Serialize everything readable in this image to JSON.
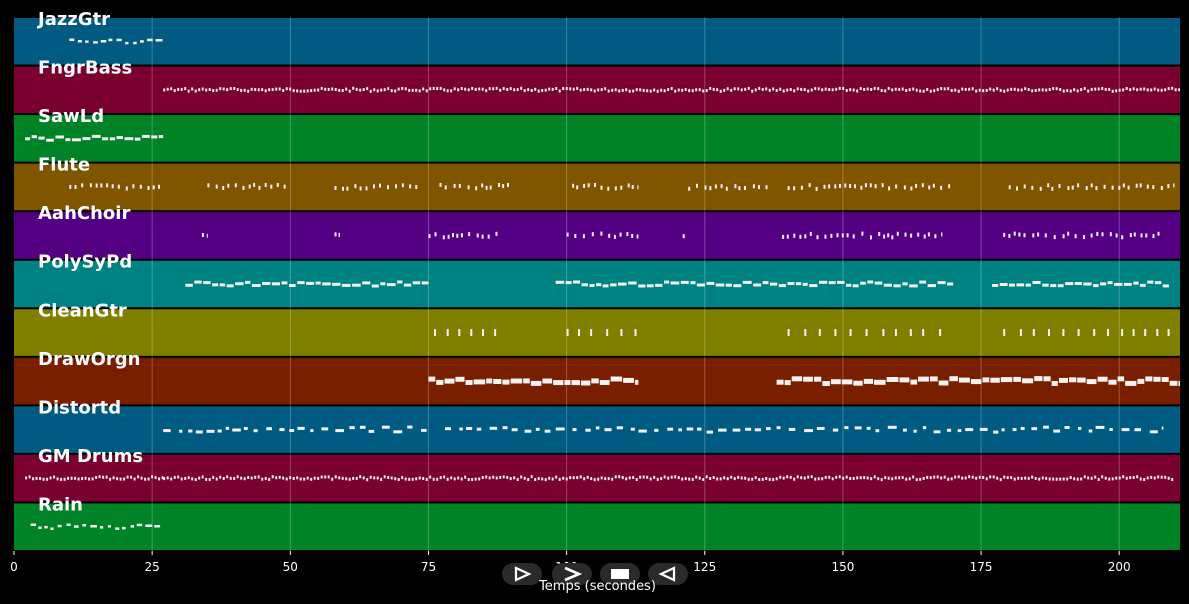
{
  "chart_data": {
    "type": "piano-roll",
    "xlabel": "Temps (secondes)",
    "xlim": [
      0,
      211
    ],
    "xticks": [
      0,
      25,
      50,
      75,
      100,
      125,
      150,
      175,
      200
    ],
    "grid": true,
    "tracks": [
      {
        "name": "JazzGtr",
        "color": "#005a82",
        "segments": [
          [
            10,
            27
          ]
        ],
        "style": "sparse-dash"
      },
      {
        "name": "FngrBass",
        "color": "#7a0030",
        "segments": [
          [
            27,
            211
          ]
        ],
        "style": "dense-dots"
      },
      {
        "name": "SawLd",
        "color": "#008226",
        "segments": [
          [
            2,
            27
          ]
        ],
        "style": "dash"
      },
      {
        "name": "Flute",
        "color": "#7f5500",
        "segments": [
          [
            10,
            27
          ],
          [
            35,
            50
          ],
          [
            58,
            73
          ],
          [
            77,
            90
          ],
          [
            101,
            113
          ],
          [
            122,
            137
          ],
          [
            140,
            170
          ],
          [
            180,
            210
          ]
        ],
        "style": "bursts"
      },
      {
        "name": "AahChoir",
        "color": "#530082",
        "segments": [
          [
            34,
            35
          ],
          [
            58,
            59
          ],
          [
            75,
            88
          ],
          [
            100,
            113
          ],
          [
            121,
            122
          ],
          [
            139,
            168
          ],
          [
            179,
            208
          ]
        ],
        "style": "bursts"
      },
      {
        "name": "PolySyPd",
        "color": "#008282",
        "segments": [
          [
            31,
            75
          ],
          [
            98,
            170
          ],
          [
            177,
            209
          ]
        ],
        "style": "dash"
      },
      {
        "name": "CleanGtr",
        "color": "#808000",
        "segments": [
          [
            76,
            89
          ],
          [
            100,
            114
          ],
          [
            140,
            169
          ],
          [
            179,
            211
          ]
        ],
        "style": "ticks"
      },
      {
        "name": "DrawOrgn",
        "color": "#7a1e00",
        "segments": [
          [
            75,
            113
          ],
          [
            138,
            211
          ]
        ],
        "style": "thick"
      },
      {
        "name": "Distortd",
        "color": "#005a82",
        "segments": [
          [
            27,
            75
          ],
          [
            78,
            208
          ]
        ],
        "style": "mixed"
      },
      {
        "name": "GM Drums",
        "color": "#7a0030",
        "segments": [
          [
            2,
            27
          ],
          [
            27,
            210
          ]
        ],
        "style": "dense-dots"
      },
      {
        "name": "Rain",
        "color": "#008226",
        "segments": [
          [
            3,
            27
          ]
        ],
        "style": "sparse-dash"
      }
    ]
  },
  "controls": [
    {
      "name": "play-button",
      "icon": "play-outline-icon"
    },
    {
      "name": "forward-button",
      "icon": "chevron-right-icon"
    },
    {
      "name": "stop-button",
      "icon": "stop-icon"
    },
    {
      "name": "back-button",
      "icon": "rewind-icon"
    }
  ]
}
